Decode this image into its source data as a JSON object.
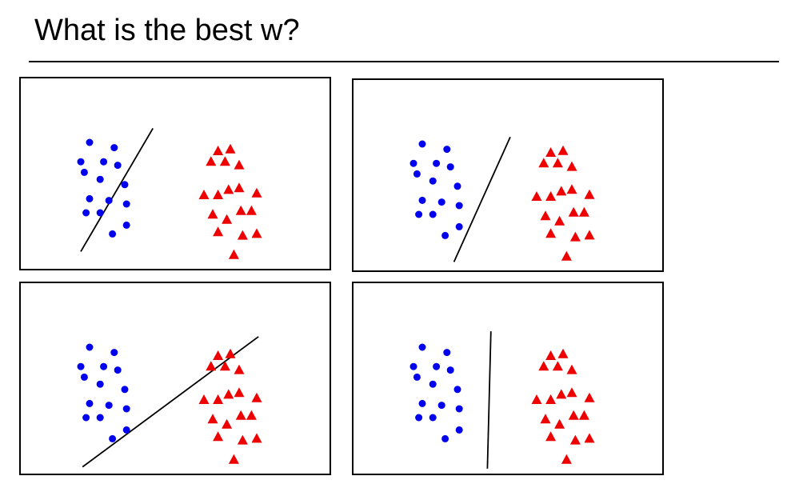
{
  "title": "What is the best w?",
  "colors": {
    "class_a": "#0000ee",
    "class_b": "#ee0000",
    "line": "#000000",
    "frame": "#000000"
  },
  "chart_data": {
    "type": "scatter",
    "series": [
      {
        "marker": "circle",
        "color": "#0000ee",
        "points": [
          [
            4.0,
            1.0
          ],
          [
            5.4,
            1.3
          ],
          [
            3.5,
            2.1
          ],
          [
            4.8,
            2.1
          ],
          [
            5.6,
            2.3
          ],
          [
            3.7,
            2.7
          ],
          [
            4.6,
            3.1
          ],
          [
            6.0,
            3.4
          ],
          [
            4.0,
            4.2
          ],
          [
            5.1,
            4.3
          ],
          [
            6.1,
            4.5
          ],
          [
            3.8,
            5.0
          ],
          [
            4.6,
            5.0
          ],
          [
            6.1,
            5.7
          ],
          [
            5.3,
            6.2
          ]
        ]
      },
      {
        "marker": "triangle",
        "color": "#ee0000",
        "points": [
          [
            11.3,
            1.5
          ],
          [
            12.0,
            1.4
          ],
          [
            10.9,
            2.1
          ],
          [
            11.7,
            2.1
          ],
          [
            12.5,
            2.3
          ],
          [
            10.5,
            4.0
          ],
          [
            11.3,
            4.0
          ],
          [
            11.9,
            3.7
          ],
          [
            12.5,
            3.6
          ],
          [
            13.5,
            3.9
          ],
          [
            11.0,
            5.1
          ],
          [
            11.8,
            5.4
          ],
          [
            12.6,
            4.9
          ],
          [
            13.2,
            4.9
          ],
          [
            11.3,
            6.1
          ],
          [
            12.7,
            6.3
          ],
          [
            13.5,
            6.2
          ],
          [
            12.2,
            7.4
          ]
        ]
      }
    ],
    "panels": [
      {
        "line": [
          [
            7.6,
            0.2
          ],
          [
            3.5,
            7.2
          ]
        ]
      },
      {
        "line": [
          [
            9.0,
            0.6
          ],
          [
            5.8,
            7.7
          ]
        ]
      },
      {
        "line": [
          [
            13.6,
            0.4
          ],
          [
            3.6,
            7.8
          ]
        ]
      },
      {
        "line": [
          [
            7.9,
            0.1
          ],
          [
            7.7,
            7.9
          ]
        ]
      }
    ]
  }
}
